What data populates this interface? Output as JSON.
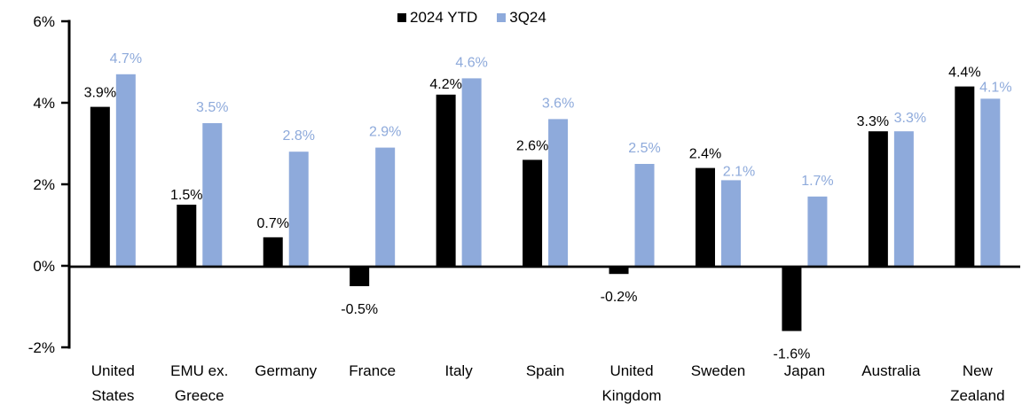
{
  "chart_data": {
    "type": "bar",
    "title": "",
    "xlabel": "",
    "ylabel": "",
    "grid": false,
    "legend_position": "top-center",
    "ylim": [
      -2,
      6
    ],
    "ytick_step": 2,
    "ytick_labels": [
      "6%",
      "4%",
      "2%",
      "0%",
      "-2%"
    ],
    "categories": [
      "United States",
      "EMU ex. Greece",
      "Germany",
      "France",
      "Italy",
      "Spain",
      "United Kingdom",
      "Sweden",
      "Japan",
      "Australia",
      "New Zealand"
    ],
    "category_label_lines": [
      [
        "United",
        "States"
      ],
      [
        "EMU ex.",
        "Greece"
      ],
      [
        "Germany"
      ],
      [
        "France"
      ],
      [
        "Italy"
      ],
      [
        "Spain"
      ],
      [
        "United",
        "Kingdom"
      ],
      [
        "Sweden"
      ],
      [
        "Japan"
      ],
      [
        "Australia"
      ],
      [
        "New",
        "Zealand"
      ]
    ],
    "series": [
      {
        "name": "2024 YTD",
        "color": "#000000",
        "values": [
          3.9,
          1.5,
          0.7,
          -0.5,
          4.2,
          2.6,
          -0.2,
          2.4,
          -1.6,
          3.3,
          4.4
        ],
        "labels": [
          "3.9%",
          "1.5%",
          "0.7%",
          "-0.5%",
          "4.2%",
          "2.6%",
          "-0.2%",
          "2.4%",
          "-1.6%",
          "3.3%",
          "4.4%"
        ]
      },
      {
        "name": "3Q24",
        "color": "#8EAADB",
        "values": [
          4.7,
          3.5,
          2.8,
          2.9,
          4.6,
          3.6,
          2.5,
          2.1,
          1.7,
          3.3,
          4.1
        ],
        "labels": [
          "4.7%",
          "3.5%",
          "2.8%",
          "2.9%",
          "4.6%",
          "3.6%",
          "2.5%",
          "2.1%",
          "1.7%",
          "3.3%",
          "4.1%"
        ]
      }
    ],
    "axis_color": "#000000"
  }
}
